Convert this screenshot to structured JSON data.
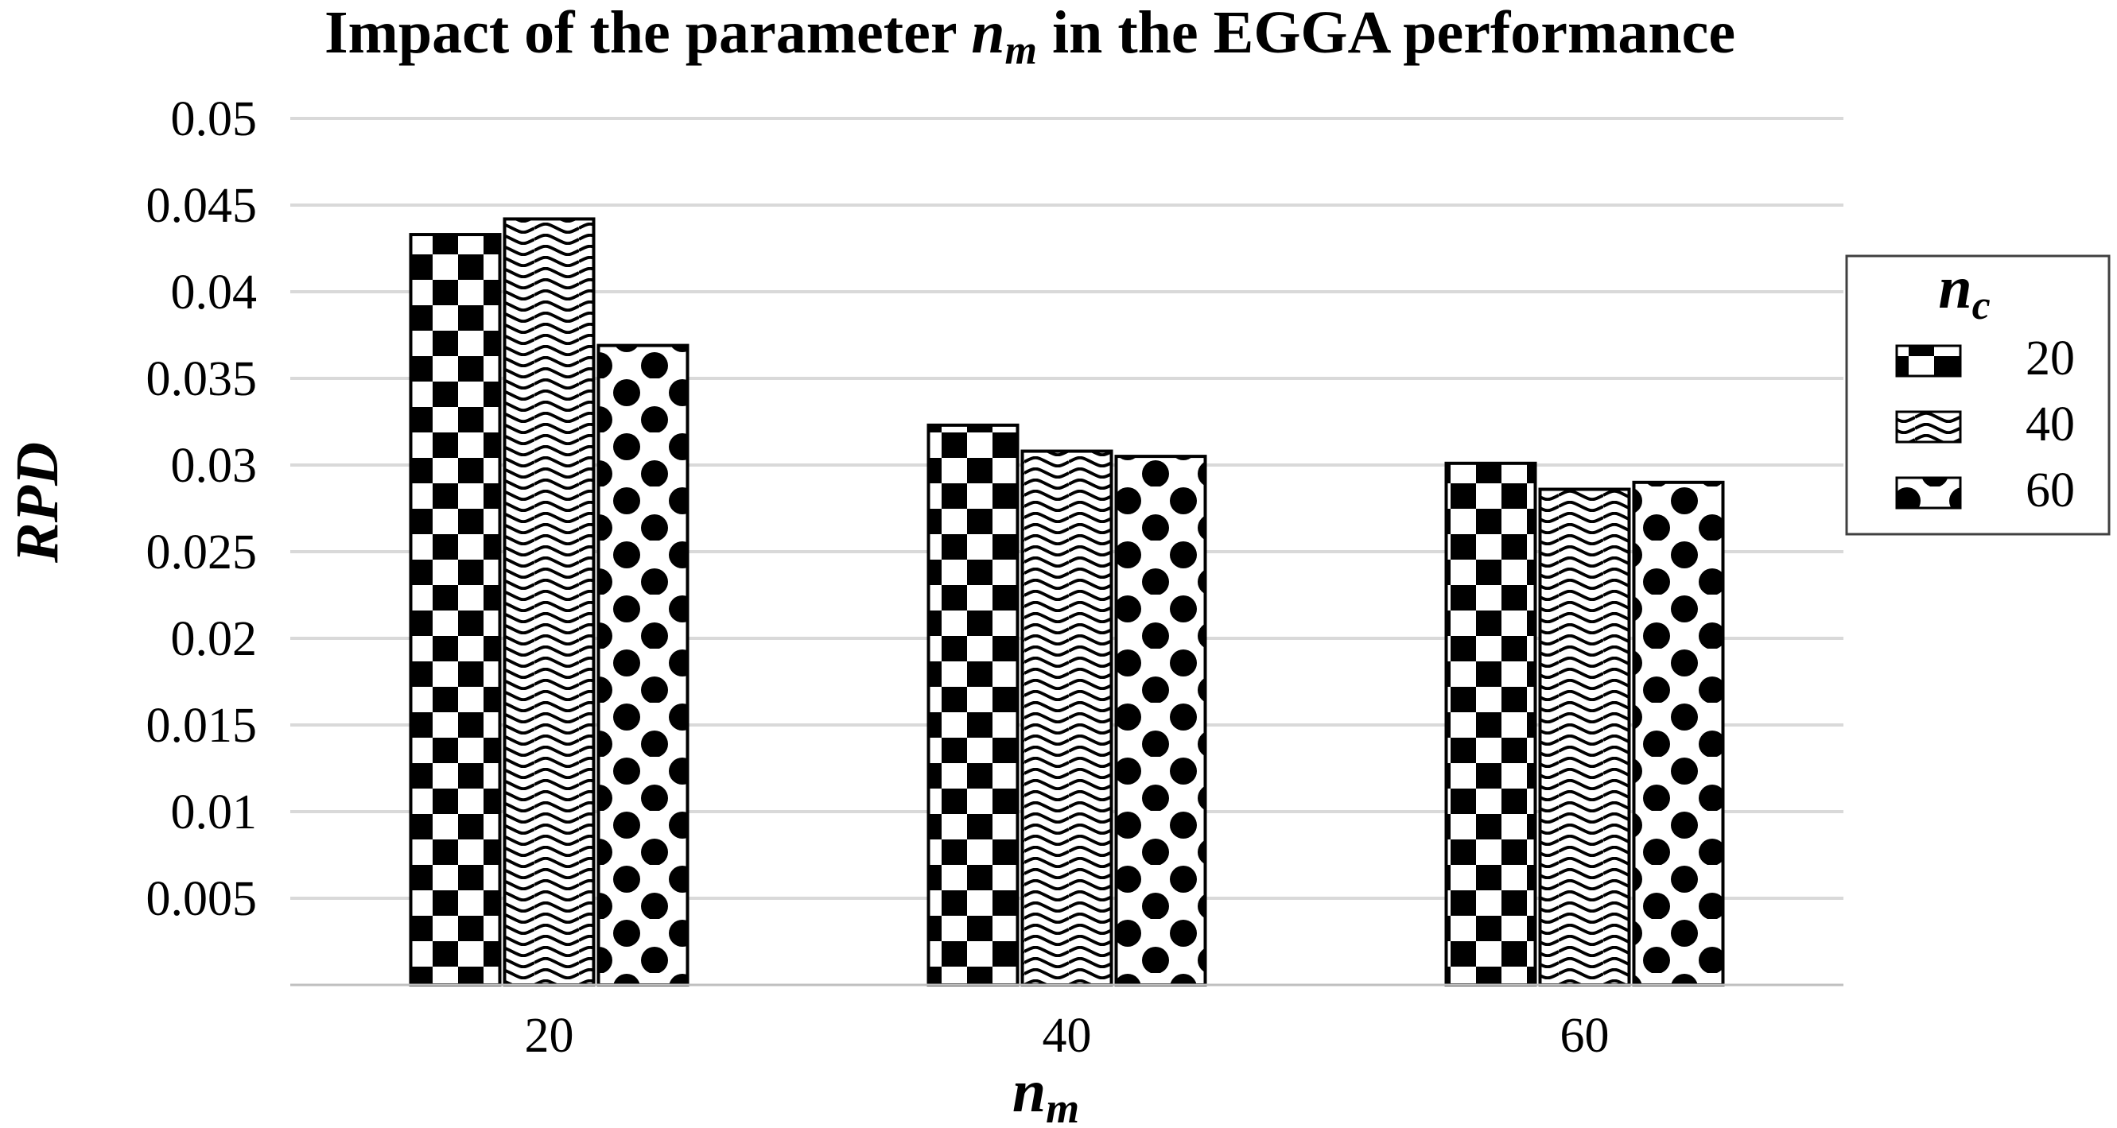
{
  "chart_data": {
    "type": "bar",
    "title": {
      "prefix": "Impact of the parameter ",
      "var": "n",
      "sub": "m",
      "suffix": " in the EGGA performance"
    },
    "xlabel": {
      "var": "n",
      "sub": "m"
    },
    "ylabel": "RPD",
    "categories": [
      "20",
      "40",
      "60"
    ],
    "y_ticks": [
      "0.005",
      "0.01",
      "0.015",
      "0.02",
      "0.025",
      "0.03",
      "0.035",
      "0.04",
      "0.045",
      "0.05"
    ],
    "ylim": [
      0,
      0.05
    ],
    "grid": true,
    "legend": {
      "title_var": "n",
      "title_sub": "c",
      "position": "right"
    },
    "series": [
      {
        "name": "20",
        "pattern": "checkerboard",
        "values": [
          0.0433,
          0.0323,
          0.0301
        ]
      },
      {
        "name": "40",
        "pattern": "wave",
        "values": [
          0.0442,
          0.0308,
          0.0286
        ]
      },
      {
        "name": "60",
        "pattern": "dots",
        "values": [
          0.0369,
          0.0305,
          0.029
        ]
      }
    ],
    "colors": {
      "bar_fill": "#ffffff",
      "pattern": "#000000",
      "grid": "#d9d9d9",
      "axis": "#bfbfbf"
    }
  }
}
